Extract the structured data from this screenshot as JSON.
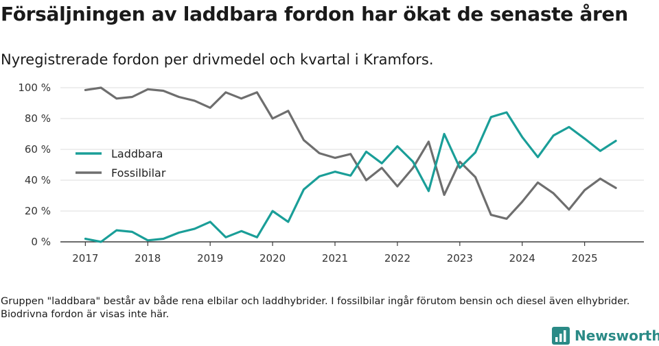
{
  "header": {
    "title": "Försäljningen av laddbara fordon har ökat de senaste åren",
    "subtitle": "Nyregistrerade fordon per drivmedel och kvartal i Kramfors."
  },
  "chart_data": {
    "type": "line",
    "title": "Försäljningen av laddbara fordon har ökat de senaste åren",
    "subtitle": "Nyregistrerade fordon per drivmedel och kvartal i Kramfors.",
    "xlabel": "",
    "ylabel": "",
    "x": [
      2017.0,
      2017.25,
      2017.5,
      2017.75,
      2018.0,
      2018.25,
      2018.5,
      2018.75,
      2019.0,
      2019.25,
      2019.5,
      2019.75,
      2020.0,
      2020.25,
      2020.5,
      2020.75,
      2021.0,
      2021.25,
      2021.5,
      2021.75,
      2022.0,
      2022.25,
      2022.5,
      2022.75,
      2023.0,
      2023.25,
      2023.5,
      2023.75,
      2024.0,
      2024.25,
      2024.5,
      2024.75,
      2025.0,
      2025.25,
      2025.5
    ],
    "xlim": [
      2016.6,
      2025.95
    ],
    "x_ticks": [
      2017,
      2018,
      2019,
      2020,
      2021,
      2022,
      2023,
      2024,
      2025
    ],
    "x_tick_labels": [
      "2017",
      "2018",
      "2019",
      "2020",
      "2021",
      "2022",
      "2023",
      "2024",
      "2025"
    ],
    "ylim": [
      0,
      100
    ],
    "y_ticks": [
      0,
      20,
      40,
      60,
      80,
      100
    ],
    "y_tick_labels": [
      "0 %",
      "20 %",
      "40 %",
      "60 %",
      "80 %",
      "100 %"
    ],
    "grid": true,
    "legend_position": "left",
    "series": [
      {
        "name": "Laddbara",
        "color": "#1a9e98",
        "values": [
          2,
          0,
          7.5,
          6.5,
          1,
          2,
          6,
          8.5,
          13,
          3,
          7,
          3,
          20,
          13,
          34,
          42.5,
          45.5,
          43,
          58.5,
          51,
          62,
          52,
          33,
          70,
          48,
          58,
          81,
          84,
          68,
          55,
          69,
          74.5,
          67,
          59,
          65.5
        ]
      },
      {
        "name": "Fossilbilar",
        "color": "#6e6e6e",
        "values": [
          98.5,
          100,
          93,
          94,
          99,
          98,
          94,
          91.5,
          87,
          97,
          93,
          97,
          80,
          85,
          66,
          57.5,
          54.5,
          57,
          40,
          48,
          36,
          48,
          65,
          30.5,
          52,
          42,
          17.5,
          15,
          26,
          38.5,
          31.5,
          21,
          33.5,
          41,
          35
        ]
      }
    ]
  },
  "footnote": "Gruppen \"laddbara\" består av både rena elbilar och laddhybrider. I fossilbilar ingår förutom bensin och diesel även elhybrider. Biodrivna fordon är visas inte här.",
  "brand": {
    "name": "Newsworthy",
    "icon": "bar-chart-logo-icon",
    "color": "#2a8a86"
  }
}
